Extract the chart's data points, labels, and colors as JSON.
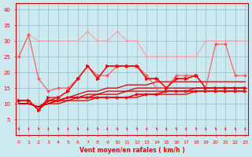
{
  "x": [
    0,
    1,
    2,
    3,
    4,
    5,
    6,
    7,
    8,
    9,
    10,
    11,
    12,
    13,
    14,
    15,
    16,
    17,
    18,
    19,
    20,
    21,
    22,
    23
  ],
  "wind_gust_light": [
    25,
    32,
    30,
    30,
    30,
    30,
    30,
    33,
    30,
    30,
    33,
    30,
    30,
    25,
    25,
    25,
    25,
    25,
    25,
    30,
    30,
    30,
    30,
    30
  ],
  "wind_gust_med": [
    25,
    32,
    18,
    14,
    15,
    15,
    18,
    22,
    19,
    19,
    22,
    22,
    22,
    19,
    15,
    15,
    19,
    19,
    19,
    15,
    29,
    29,
    19,
    19
  ],
  "wind_avg_line": [
    11,
    11,
    8,
    11,
    11,
    12,
    12,
    12,
    12,
    12,
    12,
    12,
    13,
    13,
    13,
    14,
    14,
    14,
    14,
    14,
    14,
    14,
    14,
    14
  ],
  "wind_gust_dark1": [
    11,
    11,
    8,
    12,
    12,
    14,
    18,
    22,
    18,
    22,
    22,
    22,
    22,
    18,
    18,
    15,
    18,
    18,
    19,
    15,
    15,
    15,
    15,
    15
  ],
  "wind_gust_dark2": [
    11,
    11,
    8,
    11,
    12,
    14,
    18,
    22,
    18,
    22,
    22,
    22,
    22,
    18,
    18,
    15,
    18,
    18,
    19,
    15,
    15,
    15,
    15,
    15
  ],
  "trend1": [
    10,
    10,
    9,
    10,
    10,
    11,
    11,
    11,
    12,
    12,
    12,
    12,
    12,
    13,
    13,
    13,
    13,
    13,
    14,
    14,
    14,
    14,
    14,
    14
  ],
  "trend2": [
    10,
    10,
    9,
    10,
    11,
    11,
    12,
    12,
    13,
    13,
    13,
    14,
    14,
    14,
    14,
    14,
    14,
    14,
    15,
    15,
    15,
    15,
    15,
    15
  ],
  "trend3": [
    10,
    10,
    9,
    10,
    11,
    12,
    12,
    13,
    13,
    14,
    14,
    14,
    15,
    15,
    15,
    15,
    15,
    15,
    15,
    15,
    15,
    15,
    15,
    15
  ],
  "trend4": [
    10,
    10,
    9,
    11,
    11,
    12,
    13,
    14,
    14,
    15,
    15,
    16,
    16,
    16,
    17,
    17,
    17,
    17,
    17,
    17,
    17,
    17,
    17,
    17
  ],
  "bg_color": "#cce9f0",
  "grid_color": "#99bbcc",
  "xlabel": "Vent moyen/en rafales ( km/h )",
  "ylim": [
    0,
    42
  ],
  "yticks": [
    5,
    10,
    15,
    20,
    25,
    30,
    35,
    40
  ],
  "xlim": [
    -0.3,
    23.3
  ]
}
